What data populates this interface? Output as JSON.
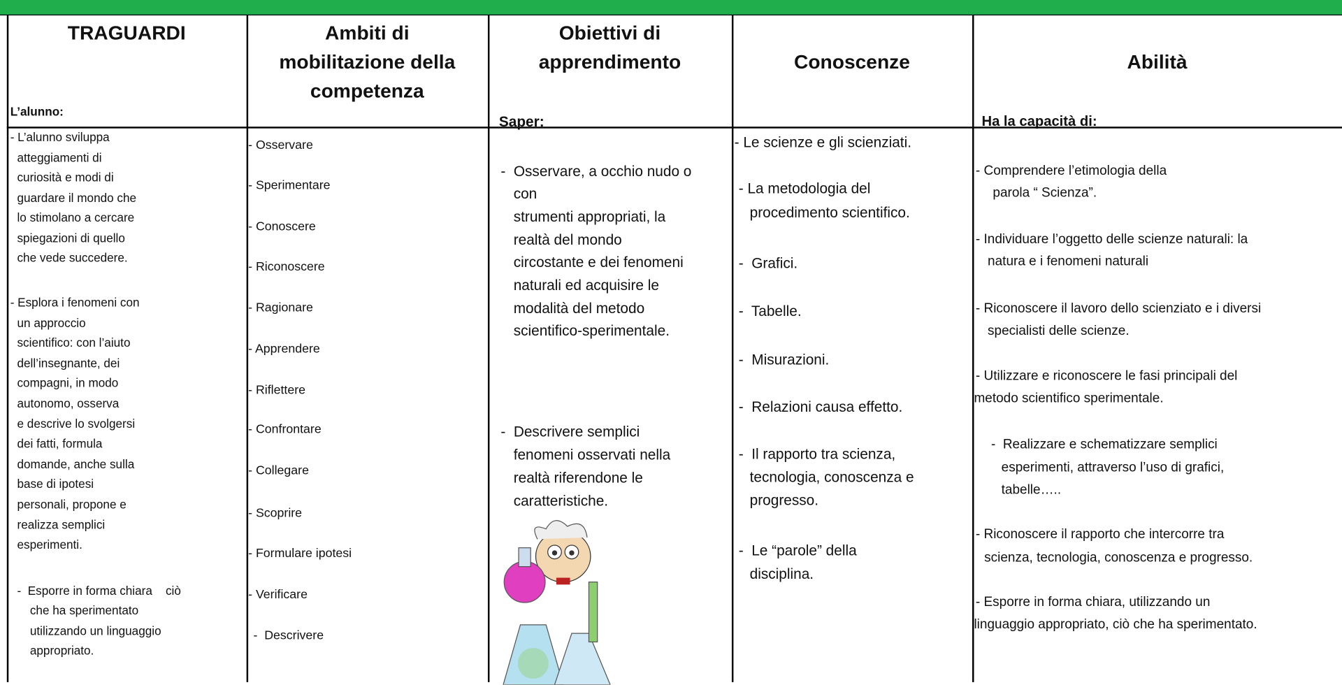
{
  "header": {
    "columns": [
      [
        "TRAGUARDI"
      ],
      [
        "Ambiti di",
        "mobilitazione della",
        "competenza"
      ],
      [
        "Obiettivi di",
        "apprendimento"
      ],
      [
        "Conoscenze"
      ],
      [
        "Abilità"
      ]
    ]
  },
  "columns": [
    {
      "intro": "L’alunno:",
      "items": [
        [
          "- L’alunno sviluppa",
          "atteggiamenti di",
          "curiosità e modi di",
          "guardare il mondo che",
          "lo stimolano a cercare",
          "spiegazioni di quello",
          "che vede succedere."
        ],
        [
          "- Esplora i fenomeni con",
          "un approccio",
          "scientifico: con l’aiuto",
          "dell’insegnante, dei",
          "compagni, in modo",
          "autonomo, osserva",
          "e descrive lo svolgersi",
          "dei fatti, formula",
          "domande, anche sulla",
          "base di ipotesi",
          "personali, propone e",
          "realizza semplici",
          "esperimenti."
        ],
        [
          "-  Esporre in forma chiara    ciò",
          "che ha sperimentato",
          "utilizzando un linguaggio",
          "appropriato."
        ]
      ]
    },
    {
      "items": [
        [
          "- Osservare"
        ],
        [
          "- Sperimentare"
        ],
        [
          "- Conoscere"
        ],
        [
          "- Riconoscere"
        ],
        [
          "- Ragionare"
        ],
        [
          "- Apprendere"
        ],
        [
          "- Riflettere"
        ],
        [
          "- Confrontare"
        ],
        [
          "- Collegare"
        ],
        [
          "- Scoprire"
        ],
        [
          "- Formulare ipotesi"
        ],
        [
          "- Verificare"
        ],
        [
          "-  Descrivere"
        ]
      ]
    },
    {
      "intro": "Saper:",
      "items": [
        [
          "-  Osservare, a occhio nudo o",
          "con",
          "strumenti appropriati, la",
          "realtà del mondo",
          "circostante e dei fenomeni",
          "naturali ed acquisire le",
          "modalità del metodo",
          "scientifico-sperimentale."
        ],
        [
          "-  Descrivere semplici",
          "fenomeni osservati nella",
          "realtà riferendone le",
          "caratteristiche."
        ]
      ]
    },
    {
      "items": [
        [
          "- Le scienze e gli scienziati."
        ],
        [
          "- La metodologia del",
          "procedimento scientifico."
        ],
        [
          "-  Grafici."
        ],
        [
          "-  Tabelle."
        ],
        [
          "-  Misurazioni."
        ],
        [
          "-  Relazioni causa effetto."
        ],
        [
          "-  Il rapporto tra scienza,",
          "tecnologia, conoscenza e",
          "progresso."
        ],
        [
          "-  Le “parole” della",
          "disciplina."
        ]
      ]
    },
    {
      "intro": "Ha la capacità di:",
      "items": [
        [
          "- Comprendere l’etimologia della",
          "parola “ Scienza”."
        ],
        [
          "- Individuare l’oggetto delle scienze naturali: la",
          "natura e i fenomeni naturali"
        ],
        [
          "- Riconoscere il lavoro dello scienziato e i diversi",
          "specialisti delle scienze."
        ],
        [
          "- Utilizzare e riconoscere le fasi principali del",
          "metodo scientifico sperimentale."
        ],
        [
          "-  Realizzare e schematizzare semplici",
          "esperimenti, attraverso l’uso di grafici,",
          "tabelle….."
        ],
        [
          "- Riconoscere il rapporto che intercorre tra",
          "scienza, tecnologia, conoscenza e progresso."
        ],
        [
          "- Esporre in forma chiara, utilizzando un",
          "linguaggio appropriato, ciò che ha sperimentato."
        ]
      ]
    }
  ]
}
